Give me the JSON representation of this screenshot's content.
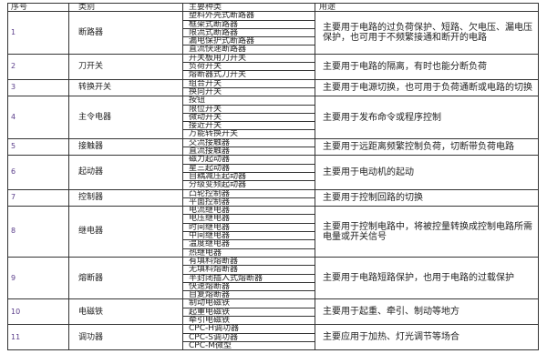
{
  "headers": [
    "序号",
    "类别",
    "主要种类",
    "用途"
  ],
  "rows": [
    {
      "no": "1",
      "category": "断路器",
      "types": [
        "塑料外壳式断路器",
        "框架式断路器",
        "限流式断路器",
        "漏电保护式断路器",
        "直流快速断路器"
      ],
      "use": "主要用于电路的过负荷保护、短路、欠电压、漏电压保护，也可用于不频繁接通和断开的电路"
    },
    {
      "no": "2",
      "category": "刀开关",
      "types": [
        "开关板用刀开关",
        "负荷开关",
        "熔断器式刀开关"
      ],
      "use": "主要用于电路的隔离，有时也能分断负荷"
    },
    {
      "no": "3",
      "category": "转换开关",
      "types": [
        "组合开关",
        "换向开关"
      ],
      "use": "主要用于电源切换，也可用于负荷通断或电路的切换"
    },
    {
      "no": "4",
      "category": "主令电器",
      "types": [
        "按钮",
        "限位开关",
        "微动开关",
        "接近开关",
        "万能转换开关"
      ],
      "use": "主要用于发布命令或程序控制"
    },
    {
      "no": "5",
      "category": "接触器",
      "types": [
        "交流接触器",
        "直流接触器"
      ],
      "use": "主要用于远距离频繁控制负荷，切断带负荷电路"
    },
    {
      "no": "6",
      "category": "起动器",
      "types": [
        "磁力起动器",
        "星三起动器",
        "自耦减压起动器",
        "分级变频起动器"
      ],
      "use": "主要用于电动机的起动"
    },
    {
      "no": "7",
      "category": "控制器",
      "types": [
        "凸轮控制器",
        "平面控制器"
      ],
      "use": "主要用于控制回路的切换"
    },
    {
      "no": "8",
      "category": "继电器",
      "types": [
        "电流继电器",
        "电压继电器",
        "时间继电器",
        "中间继电器",
        "温度继电器",
        "热继电器"
      ],
      "use": "主要用于控制电路中，将被控量转换成控制电路所需电量或开关信号"
    },
    {
      "no": "9",
      "category": "熔断器",
      "types": [
        "有填料熔断器",
        "无填料熔断器",
        "半封闭插入式熔断器",
        "快速熔断器",
        "自复熔断器"
      ],
      "use": "主要用于电路短路保护，也用于电路的过载保护"
    },
    {
      "no": "10",
      "category": "电磁铁",
      "types": [
        "制动电磁铁",
        "起重电磁铁",
        "牵引电磁铁"
      ],
      "use": "主要用于起重、牵引、制动等地方"
    },
    {
      "no": "11",
      "category": "调功器",
      "types": [
        "CPC-H调功器",
        "CPC-S调功器",
        "CPC-M微型"
      ],
      "use": "主要应用于加热、灯光调节等场合"
    }
  ]
}
